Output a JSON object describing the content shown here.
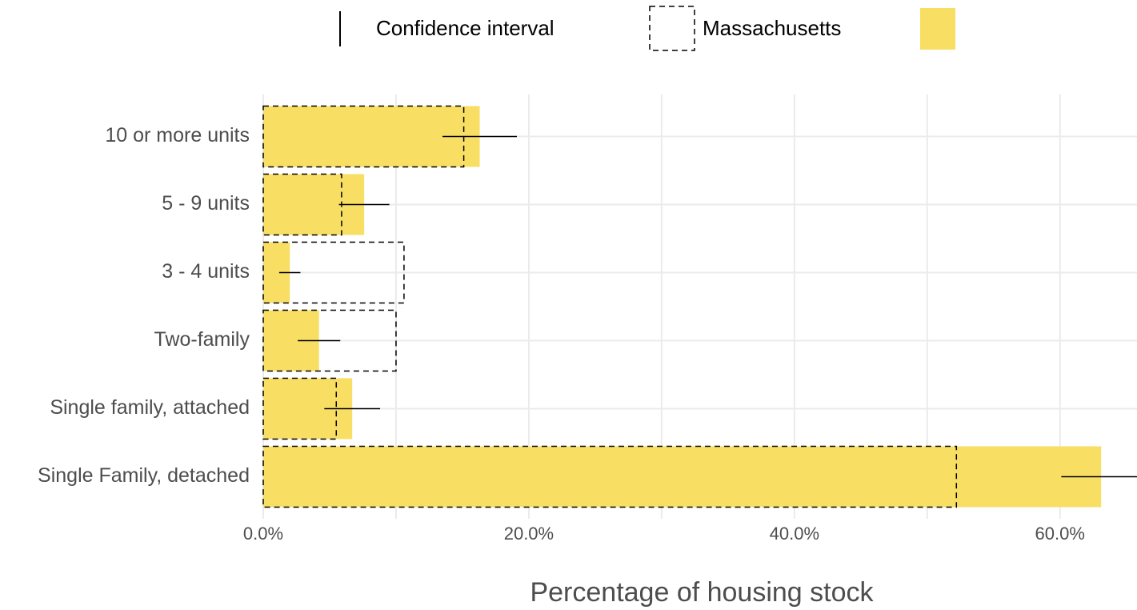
{
  "chart_data": {
    "type": "bar",
    "orientation": "horizontal",
    "categories": [
      "10 or more units",
      "5 - 9 units",
      "3 - 4 units",
      "Two-family",
      "Single family, attached",
      "Single Family, detached"
    ],
    "series": [
      {
        "color": "#f9de64",
        "values": [
          16.3,
          7.6,
          2.0,
          4.2,
          6.7,
          63.1
        ],
        "errors": [
          2.8,
          1.9,
          0.8,
          1.6,
          2.1,
          3.0
        ]
      },
      {
        "name": "Massachusetts",
        "style": "dashed",
        "values": [
          15.1,
          5.9,
          10.6,
          10.0,
          5.5,
          52.2
        ]
      }
    ],
    "error_label": "Confidence interval",
    "x_label": "Percentage of housing stock",
    "xlim": [
      0,
      65.8
    ],
    "xticks": [
      {
        "value": 0,
        "label": "0.0%"
      },
      {
        "value": 20,
        "label": "20.0%"
      },
      {
        "value": 40,
        "label": "40.0%"
      },
      {
        "value": 60,
        "label": "60.0%"
      }
    ],
    "x_minor_ticks": [
      10,
      30,
      50
    ],
    "grid": true
  }
}
